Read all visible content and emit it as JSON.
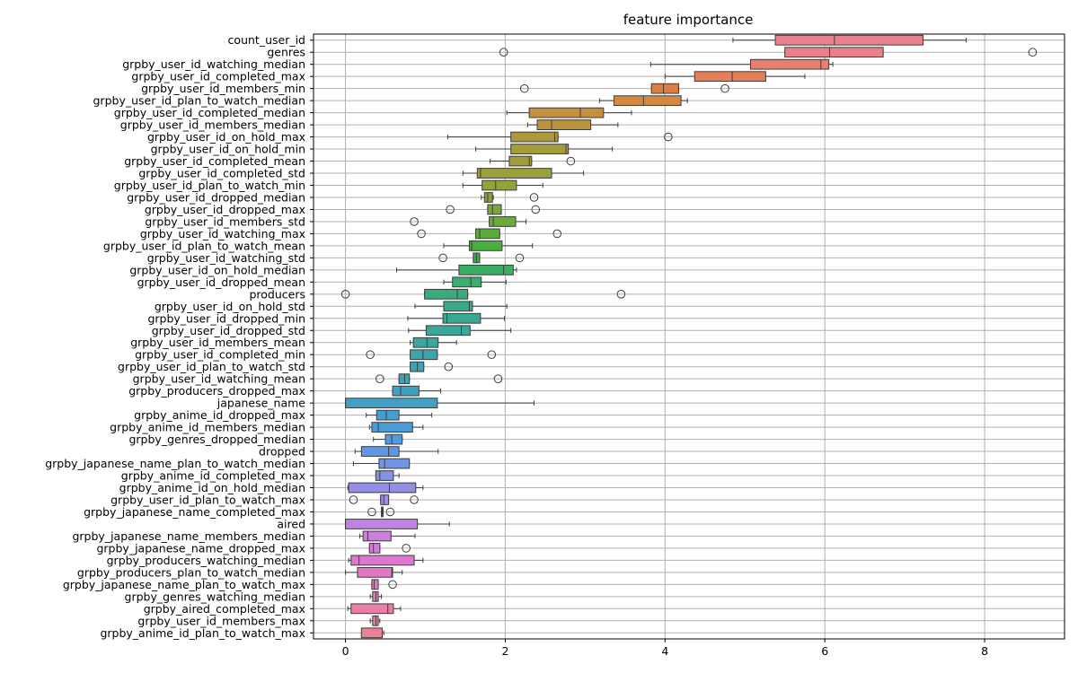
{
  "chart_data": {
    "type": "boxplot",
    "orientation": "horizontal",
    "title": "feature importance",
    "xlabel": "",
    "ylabel": "",
    "xlim": [
      -0.4,
      9.0
    ],
    "xticks": [
      0,
      2,
      4,
      6,
      8
    ],
    "grid": true,
    "legend": "none",
    "series": [
      {
        "name": "count_user_id",
        "color": "#e8818a",
        "whisker_low": 4.85,
        "q1": 5.38,
        "median": 6.12,
        "q3": 7.23,
        "whisker_high": 7.77,
        "outliers": []
      },
      {
        "name": "genres",
        "color": "#e8828a",
        "whisker_low": 5.5,
        "q1": 5.5,
        "median": 6.06,
        "q3": 6.73,
        "whisker_high": 6.73,
        "outliers": [
          1.98,
          8.6
        ]
      },
      {
        "name": "grpby_user_id_watching_median",
        "color": "#e77f6c",
        "whisker_low": 3.82,
        "q1": 5.07,
        "median": 5.95,
        "q3": 6.05,
        "whisker_high": 6.1,
        "outliers": []
      },
      {
        "name": "grpby_user_id_completed_max",
        "color": "#e57f57",
        "whisker_low": 4.0,
        "q1": 4.37,
        "median": 4.84,
        "q3": 5.26,
        "whisker_high": 5.75,
        "outliers": []
      },
      {
        "name": "grpby_user_id_members_min",
        "color": "#dd7f45",
        "whisker_low": 3.83,
        "q1": 3.83,
        "median": 3.98,
        "q3": 4.17,
        "whisker_high": 4.17,
        "outliers": [
          2.24,
          4.75
        ]
      },
      {
        "name": "grpby_user_id_plan_to_watch_median",
        "color": "#d48941",
        "whisker_low": 3.18,
        "q1": 3.36,
        "median": 3.73,
        "q3": 4.2,
        "whisker_high": 4.28,
        "outliers": []
      },
      {
        "name": "grpby_user_id_completed_median",
        "color": "#c48f3f",
        "whisker_low": 2.02,
        "q1": 2.3,
        "median": 2.94,
        "q3": 3.23,
        "whisker_high": 3.58,
        "outliers": []
      },
      {
        "name": "grpby_user_id_members_median",
        "color": "#b9933e",
        "whisker_low": 2.28,
        "q1": 2.4,
        "median": 2.58,
        "q3": 3.07,
        "whisker_high": 3.41,
        "outliers": []
      },
      {
        "name": "grpby_user_id_on_hold_max",
        "color": "#ad973c",
        "whisker_low": 1.28,
        "q1": 2.07,
        "median": 2.62,
        "q3": 2.66,
        "whisker_high": 2.66,
        "outliers": [
          4.04
        ]
      },
      {
        "name": "grpby_user_id_on_hold_min",
        "color": "#a59c3c",
        "whisker_low": 1.63,
        "q1": 2.07,
        "median": 2.76,
        "q3": 2.79,
        "whisker_high": 3.34,
        "outliers": []
      },
      {
        "name": "grpby_user_id_completed_mean",
        "color": "#a09e3b",
        "whisker_low": 1.81,
        "q1": 2.05,
        "median": 2.3,
        "q3": 2.33,
        "whisker_high": 2.33,
        "outliers": [
          2.82
        ]
      },
      {
        "name": "grpby_user_id_completed_std",
        "color": "#9ba03b",
        "whisker_low": 1.47,
        "q1": 1.65,
        "median": 1.69,
        "q3": 2.58,
        "whisker_high": 2.98,
        "outliers": []
      },
      {
        "name": "grpby_user_id_plan_to_watch_min",
        "color": "#93a33a",
        "whisker_low": 1.47,
        "q1": 1.71,
        "median": 1.88,
        "q3": 2.14,
        "whisker_high": 2.47,
        "outliers": []
      },
      {
        "name": "grpby_user_id_dropped_median",
        "color": "#87a63a",
        "whisker_low": 1.7,
        "q1": 1.74,
        "median": 1.78,
        "q3": 1.84,
        "whisker_high": 1.85,
        "outliers": [
          2.36
        ]
      },
      {
        "name": "grpby_user_id_dropped_max",
        "color": "#7aa83a",
        "whisker_low": 1.78,
        "q1": 1.78,
        "median": 1.84,
        "q3": 1.95,
        "whisker_high": 1.95,
        "outliers": [
          1.31,
          2.38
        ]
      },
      {
        "name": "grpby_user_id_members_std",
        "color": "#6aab3a",
        "whisker_low": 1.8,
        "q1": 1.8,
        "median": 1.85,
        "q3": 2.13,
        "whisker_high": 2.26,
        "outliers": [
          0.86
        ]
      },
      {
        "name": "grpby_user_id_watching_max",
        "color": "#5aad3a",
        "whisker_low": 1.63,
        "q1": 1.63,
        "median": 1.68,
        "q3": 1.93,
        "whisker_high": 1.93,
        "outliers": [
          0.95,
          2.65
        ]
      },
      {
        "name": "grpby_user_id_plan_to_watch_mean",
        "color": "#47af3c",
        "whisker_low": 1.23,
        "q1": 1.55,
        "median": 1.58,
        "q3": 1.96,
        "whisker_high": 2.34,
        "outliers": []
      },
      {
        "name": "grpby_user_id_watching_std",
        "color": "#3bb04c",
        "whisker_low": 1.6,
        "q1": 1.6,
        "median": 1.64,
        "q3": 1.68,
        "whisker_high": 1.68,
        "outliers": [
          1.22,
          2.18
        ]
      },
      {
        "name": "grpby_user_id_on_hold_median",
        "color": "#3aae62",
        "whisker_low": 0.64,
        "q1": 1.42,
        "median": 1.98,
        "q3": 2.1,
        "whisker_high": 2.14,
        "outliers": []
      },
      {
        "name": "grpby_user_id_dropped_mean",
        "color": "#3aad71",
        "whisker_low": 1.23,
        "q1": 1.34,
        "median": 1.57,
        "q3": 1.7,
        "whisker_high": 2.01,
        "outliers": []
      },
      {
        "name": "producers",
        "color": "#3aab7c",
        "whisker_low": 0.99,
        "q1": 0.99,
        "median": 1.4,
        "q3": 1.53,
        "whisker_high": 1.53,
        "outliers": [
          0.0,
          3.45
        ]
      },
      {
        "name": "grpby_user_id_on_hold_std",
        "color": "#3aa987",
        "whisker_low": 0.87,
        "q1": 1.23,
        "median": 1.55,
        "q3": 1.59,
        "whisker_high": 2.02,
        "outliers": []
      },
      {
        "name": "grpby_user_id_dropped_min",
        "color": "#3ba891",
        "whisker_low": 0.78,
        "q1": 1.22,
        "median": 1.27,
        "q3": 1.69,
        "whisker_high": 1.99,
        "outliers": []
      },
      {
        "name": "grpby_user_id_dropped_std",
        "color": "#3ca69a",
        "whisker_low": 0.79,
        "q1": 1.01,
        "median": 1.45,
        "q3": 1.56,
        "whisker_high": 2.07,
        "outliers": []
      },
      {
        "name": "grpby_user_id_members_mean",
        "color": "#3ca5a2",
        "whisker_low": 0.81,
        "q1": 0.85,
        "median": 1.02,
        "q3": 1.16,
        "whisker_high": 1.39,
        "outliers": []
      },
      {
        "name": "grpby_user_id_completed_min",
        "color": "#3da4a9",
        "whisker_low": 0.81,
        "q1": 0.81,
        "median": 0.97,
        "q3": 1.15,
        "whisker_high": 1.15,
        "outliers": [
          0.31,
          1.83
        ]
      },
      {
        "name": "grpby_user_id_plan_to_watch_std",
        "color": "#3ea3b0",
        "whisker_low": 0.81,
        "q1": 0.81,
        "median": 0.9,
        "q3": 0.98,
        "whisker_high": 0.98,
        "outliers": [
          1.29
        ]
      },
      {
        "name": "grpby_user_id_watching_mean",
        "color": "#3fa2b8",
        "whisker_low": 0.67,
        "q1": 0.67,
        "median": 0.74,
        "q3": 0.8,
        "whisker_high": 0.8,
        "outliers": [
          0.43,
          1.91
        ]
      },
      {
        "name": "grpby_producers_dropped_max",
        "color": "#40a1bf",
        "whisker_low": 0.59,
        "q1": 0.59,
        "median": 0.69,
        "q3": 0.92,
        "whisker_high": 1.19,
        "outliers": []
      },
      {
        "name": "japanese_name",
        "color": "#42a0c6",
        "whisker_low": 0.0,
        "q1": 0.0,
        "median": 0.0,
        "q3": 1.15,
        "whisker_high": 2.36,
        "outliers": []
      },
      {
        "name": "grpby_anime_id_dropped_max",
        "color": "#459ecf",
        "whisker_low": 0.26,
        "q1": 0.39,
        "median": 0.51,
        "q3": 0.67,
        "whisker_high": 1.08,
        "outliers": []
      },
      {
        "name": "grpby_anime_id_members_median",
        "color": "#4a9cd7",
        "whisker_low": 0.3,
        "q1": 0.33,
        "median": 0.41,
        "q3": 0.84,
        "whisker_high": 0.97,
        "outliers": []
      },
      {
        "name": "grpby_genres_dropped_median",
        "color": "#5299dd",
        "whisker_low": 0.35,
        "q1": 0.5,
        "median": 0.58,
        "q3": 0.71,
        "whisker_high": 0.71,
        "outliers": []
      },
      {
        "name": "dropped",
        "color": "#6097e2",
        "whisker_low": 0.12,
        "q1": 0.2,
        "median": 0.54,
        "q3": 0.67,
        "whisker_high": 1.16,
        "outliers": []
      },
      {
        "name": "grpby_japanese_name_plan_to_watch_median",
        "color": "#7294e5",
        "whisker_low": 0.1,
        "q1": 0.42,
        "median": 0.49,
        "q3": 0.8,
        "whisker_high": 0.8,
        "outliers": []
      },
      {
        "name": "grpby_anime_id_completed_max",
        "color": "#8392e7",
        "whisker_low": 0.38,
        "q1": 0.38,
        "median": 0.43,
        "q3": 0.6,
        "whisker_high": 0.67,
        "outliers": []
      },
      {
        "name": "grpby_anime_id_on_hold_median",
        "color": "#958ee7",
        "whisker_low": 0.03,
        "q1": 0.04,
        "median": 0.55,
        "q3": 0.88,
        "whisker_high": 0.97,
        "outliers": []
      },
      {
        "name": "grpby_user_id_plan_to_watch_max",
        "color": "#a38be6",
        "whisker_low": 0.44,
        "q1": 0.44,
        "median": 0.48,
        "q3": 0.54,
        "whisker_high": 0.54,
        "outliers": [
          0.1,
          0.86
        ]
      },
      {
        "name": "grpby_japanese_name_completed_max",
        "color": "#b188e5",
        "whisker_low": 0.45,
        "q1": 0.45,
        "median": 0.46,
        "q3": 0.47,
        "whisker_high": 0.47,
        "outliers": [
          0.33,
          0.56
        ]
      },
      {
        "name": "aired",
        "color": "#c083e2",
        "whisker_low": 0.0,
        "q1": 0.0,
        "median": 0.0,
        "q3": 0.9,
        "whisker_high": 1.3,
        "outliers": []
      },
      {
        "name": "grpby_japanese_name_members_median",
        "color": "#cc7fdd",
        "whisker_low": 0.18,
        "q1": 0.22,
        "median": 0.28,
        "q3": 0.57,
        "whisker_high": 0.87,
        "outliers": []
      },
      {
        "name": "grpby_japanese_name_dropped_max",
        "color": "#d67bd7",
        "whisker_low": 0.3,
        "q1": 0.3,
        "median": 0.35,
        "q3": 0.43,
        "whisker_high": 0.43,
        "outliers": [
          0.76
        ]
      },
      {
        "name": "grpby_producers_watching_median",
        "color": "#de78cf",
        "whisker_low": 0.04,
        "q1": 0.07,
        "median": 0.17,
        "q3": 0.86,
        "whisker_high": 0.97,
        "outliers": []
      },
      {
        "name": "grpby_producers_plan_to_watch_median",
        "color": "#e377c6",
        "whisker_low": 0.0,
        "q1": 0.15,
        "median": 0.58,
        "q3": 0.59,
        "whisker_high": 0.71,
        "outliers": []
      },
      {
        "name": "grpby_japanese_name_plan_to_watch_max",
        "color": "#e679bd",
        "whisker_low": 0.33,
        "q1": 0.33,
        "median": 0.36,
        "q3": 0.41,
        "whisker_high": 0.41,
        "outliers": [
          0.59
        ]
      },
      {
        "name": "grpby_genres_watching_median",
        "color": "#e87bb3",
        "whisker_low": 0.31,
        "q1": 0.34,
        "median": 0.38,
        "q3": 0.41,
        "whisker_high": 0.45,
        "outliers": []
      },
      {
        "name": "grpby_aired_completed_max",
        "color": "#e97ea8",
        "whisker_low": 0.03,
        "q1": 0.07,
        "median": 0.53,
        "q3": 0.6,
        "whisker_high": 0.69,
        "outliers": []
      },
      {
        "name": "grpby_user_id_members_max",
        "color": "#ea7f9e",
        "whisker_low": 0.31,
        "q1": 0.34,
        "median": 0.38,
        "q3": 0.41,
        "whisker_high": 0.43,
        "outliers": []
      },
      {
        "name": "grpby_anime_id_plan_to_watch_max",
        "color": "#ea8194",
        "whisker_low": 0.2,
        "q1": 0.2,
        "median": 0.46,
        "q3": 0.46,
        "whisker_high": 0.48,
        "outliers": []
      }
    ]
  }
}
